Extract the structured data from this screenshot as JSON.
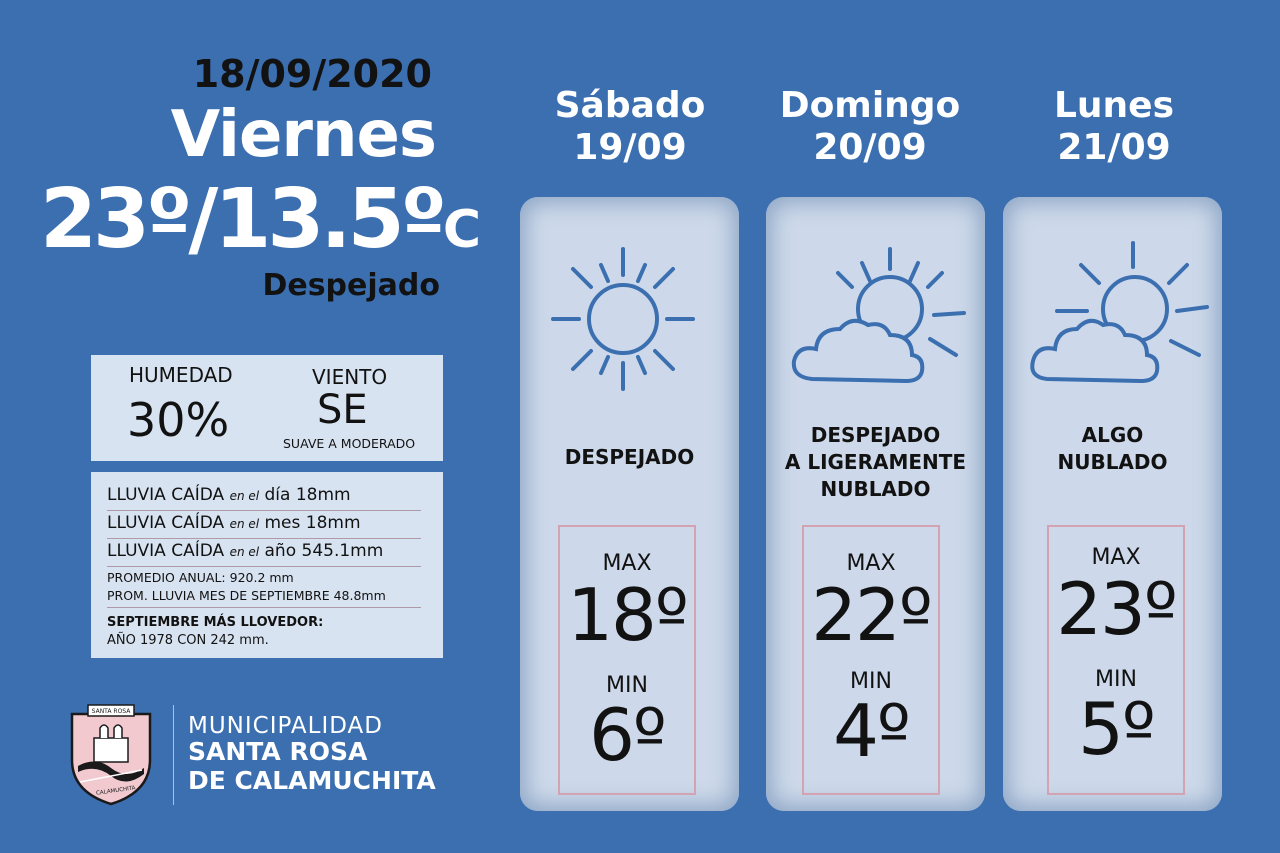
{
  "today": {
    "date": "18/09/2020",
    "day": "Viernes",
    "temp": "23º/13.5º",
    "unit": "C",
    "condition": "Despejado"
  },
  "humidity": {
    "label": "HUMEDAD",
    "value": "30%"
  },
  "wind": {
    "label": "VIENTO",
    "value": "SE",
    "desc": "SUAVE A MODERADO"
  },
  "rain": {
    "rows": [
      {
        "label": "LLUVIA CAÍDA",
        "small": "en el",
        "period": "día",
        "value": "18mm"
      },
      {
        "label": "LLUVIA CAÍDA",
        "small": "en el",
        "period": "mes",
        "value": "18mm"
      },
      {
        "label": "LLUVIA CAÍDA",
        "small": "en el",
        "period": "año",
        "value": "545.1mm"
      }
    ],
    "annual_avg": "PROMEDIO ANUAL: 920.2 mm",
    "sept_avg": "PROM. LLUVIA MES DE SEPTIEMBRE 48.8mm",
    "record_title": "SEPTIEMBRE MÁS LLOVEDOR:",
    "record_value": "AÑO 1978 CON 242 mm."
  },
  "logo": {
    "line1": "MUNICIPALIDAD",
    "line2": "SANTA ROSA",
    "line3": "DE CALAMUCHITA",
    "crest_top": "SANTA ROSA",
    "crest_bottom": "CALAMUCHITA"
  },
  "forecast": [
    {
      "day": "Sábado",
      "date": "19/09",
      "icon": "sun-icon",
      "condition": [
        "DESPEJADO"
      ],
      "max_label": "MAX",
      "max": "18º",
      "min_label": "MIN",
      "min": "6º"
    },
    {
      "day": "Domingo",
      "date": "20/09",
      "icon": "sun-cloud-icon",
      "condition": [
        "DESPEJADO",
        "A LIGERAMENTE",
        "NUBLADO"
      ],
      "max_label": "MAX",
      "max": "22º",
      "min_label": "MIN",
      "min": "4º"
    },
    {
      "day": "Lunes",
      "date": "21/09",
      "icon": "sun-cloud-icon",
      "condition": [
        "ALGO",
        "NUBLADO"
      ],
      "max_label": "MAX",
      "max": "23º",
      "min_label": "MIN",
      "min": "5º"
    }
  ],
  "colors": {
    "background": "#3b6fb0",
    "card": "#cdd9ea",
    "icon": "#3b6fb0",
    "box_border": "#d4a3b1"
  }
}
